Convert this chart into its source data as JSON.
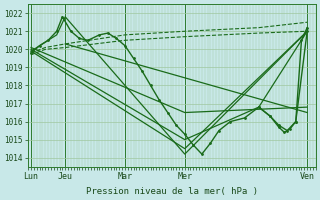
{
  "title": "",
  "xlabel": "Pression niveau de la mer( hPa )",
  "ylabel": "",
  "bg_color": "#c8e8e8",
  "grid_color": "#a0c8a0",
  "line_color": "#1a6b1a",
  "ylim": [
    1013.5,
    1022.5
  ],
  "yticks": [
    1014,
    1015,
    1016,
    1017,
    1018,
    1019,
    1020,
    1021,
    1022
  ],
  "xtick_labels": [
    "Lun",
    "Jeu",
    "Mar",
    "Mer",
    "Ven"
  ],
  "xtick_positions": [
    0,
    0.12,
    0.33,
    0.54,
    0.97
  ],
  "figsize": [
    3.2,
    2.0
  ],
  "dpi": 100,
  "lines": [
    {
      "x": [
        0.0,
        0.05,
        0.12,
        0.33,
        0.54,
        0.8,
        0.97
      ],
      "y": [
        1019.8,
        1020.1,
        1020.3,
        1020.8,
        1021.0,
        1021.2,
        1021.5
      ],
      "style": "--",
      "marker": null,
      "lw": 0.8
    },
    {
      "x": [
        0.0,
        0.05,
        0.12,
        0.33,
        0.54,
        0.8,
        0.97
      ],
      "y": [
        1019.7,
        1020.0,
        1020.1,
        1020.5,
        1020.7,
        1020.9,
        1021.0
      ],
      "style": "--",
      "marker": null,
      "lw": 0.8
    },
    {
      "x": [
        0.0,
        0.03,
        0.06,
        0.09,
        0.11,
        0.14,
        0.17,
        0.2,
        0.24,
        0.27,
        0.3,
        0.33,
        0.36,
        0.39,
        0.42,
        0.45,
        0.48,
        0.51,
        0.54,
        0.57,
        0.6,
        0.63,
        0.66,
        0.7,
        0.75,
        0.8,
        0.84,
        0.87,
        0.9,
        0.93,
        0.97
      ],
      "y": [
        1019.8,
        1020.2,
        1020.5,
        1021.0,
        1021.8,
        1021.0,
        1020.6,
        1020.5,
        1020.8,
        1020.9,
        1020.6,
        1020.2,
        1019.5,
        1018.8,
        1018.0,
        1017.2,
        1016.5,
        1015.8,
        1015.3,
        1014.7,
        1014.2,
        1014.8,
        1015.5,
        1016.0,
        1016.2,
        1016.8,
        1016.3,
        1015.8,
        1015.5,
        1016.0,
        1021.0
      ],
      "style": "-",
      "marker": ".",
      "lw": 1.0
    },
    {
      "x": [
        0.0,
        0.09,
        0.12,
        0.54,
        0.97
      ],
      "y": [
        1019.9,
        1020.8,
        1021.8,
        1014.2,
        1021.0
      ],
      "style": "-",
      "marker": null,
      "lw": 0.9
    },
    {
      "x": [
        0.0,
        0.54,
        0.97
      ],
      "y": [
        1019.9,
        1014.5,
        1021.0
      ],
      "style": "-",
      "marker": null,
      "lw": 0.9
    },
    {
      "x": [
        0.0,
        0.54,
        0.8,
        0.97
      ],
      "y": [
        1020.0,
        1015.0,
        1016.8,
        1021.0
      ],
      "style": "-",
      "marker": null,
      "lw": 0.9
    },
    {
      "x": [
        0.0,
        0.54,
        0.97
      ],
      "y": [
        1020.1,
        1016.5,
        1016.8
      ],
      "style": "-",
      "marker": null,
      "lw": 0.9
    },
    {
      "x": [
        0.12,
        0.97
      ],
      "y": [
        1020.3,
        1016.5
      ],
      "style": "-",
      "marker": null,
      "lw": 0.9
    },
    {
      "x": [
        0.8,
        0.84,
        0.87,
        0.89,
        0.91,
        0.93,
        0.95,
        0.97
      ],
      "y": [
        1016.8,
        1016.3,
        1015.7,
        1015.4,
        1015.6,
        1016.0,
        1020.5,
        1021.2
      ],
      "style": "-",
      "marker": ".",
      "lw": 1.0
    }
  ],
  "vlines": [
    0.0,
    0.12,
    0.33,
    0.54,
    0.97
  ],
  "vline_color": "#2d7a2d"
}
